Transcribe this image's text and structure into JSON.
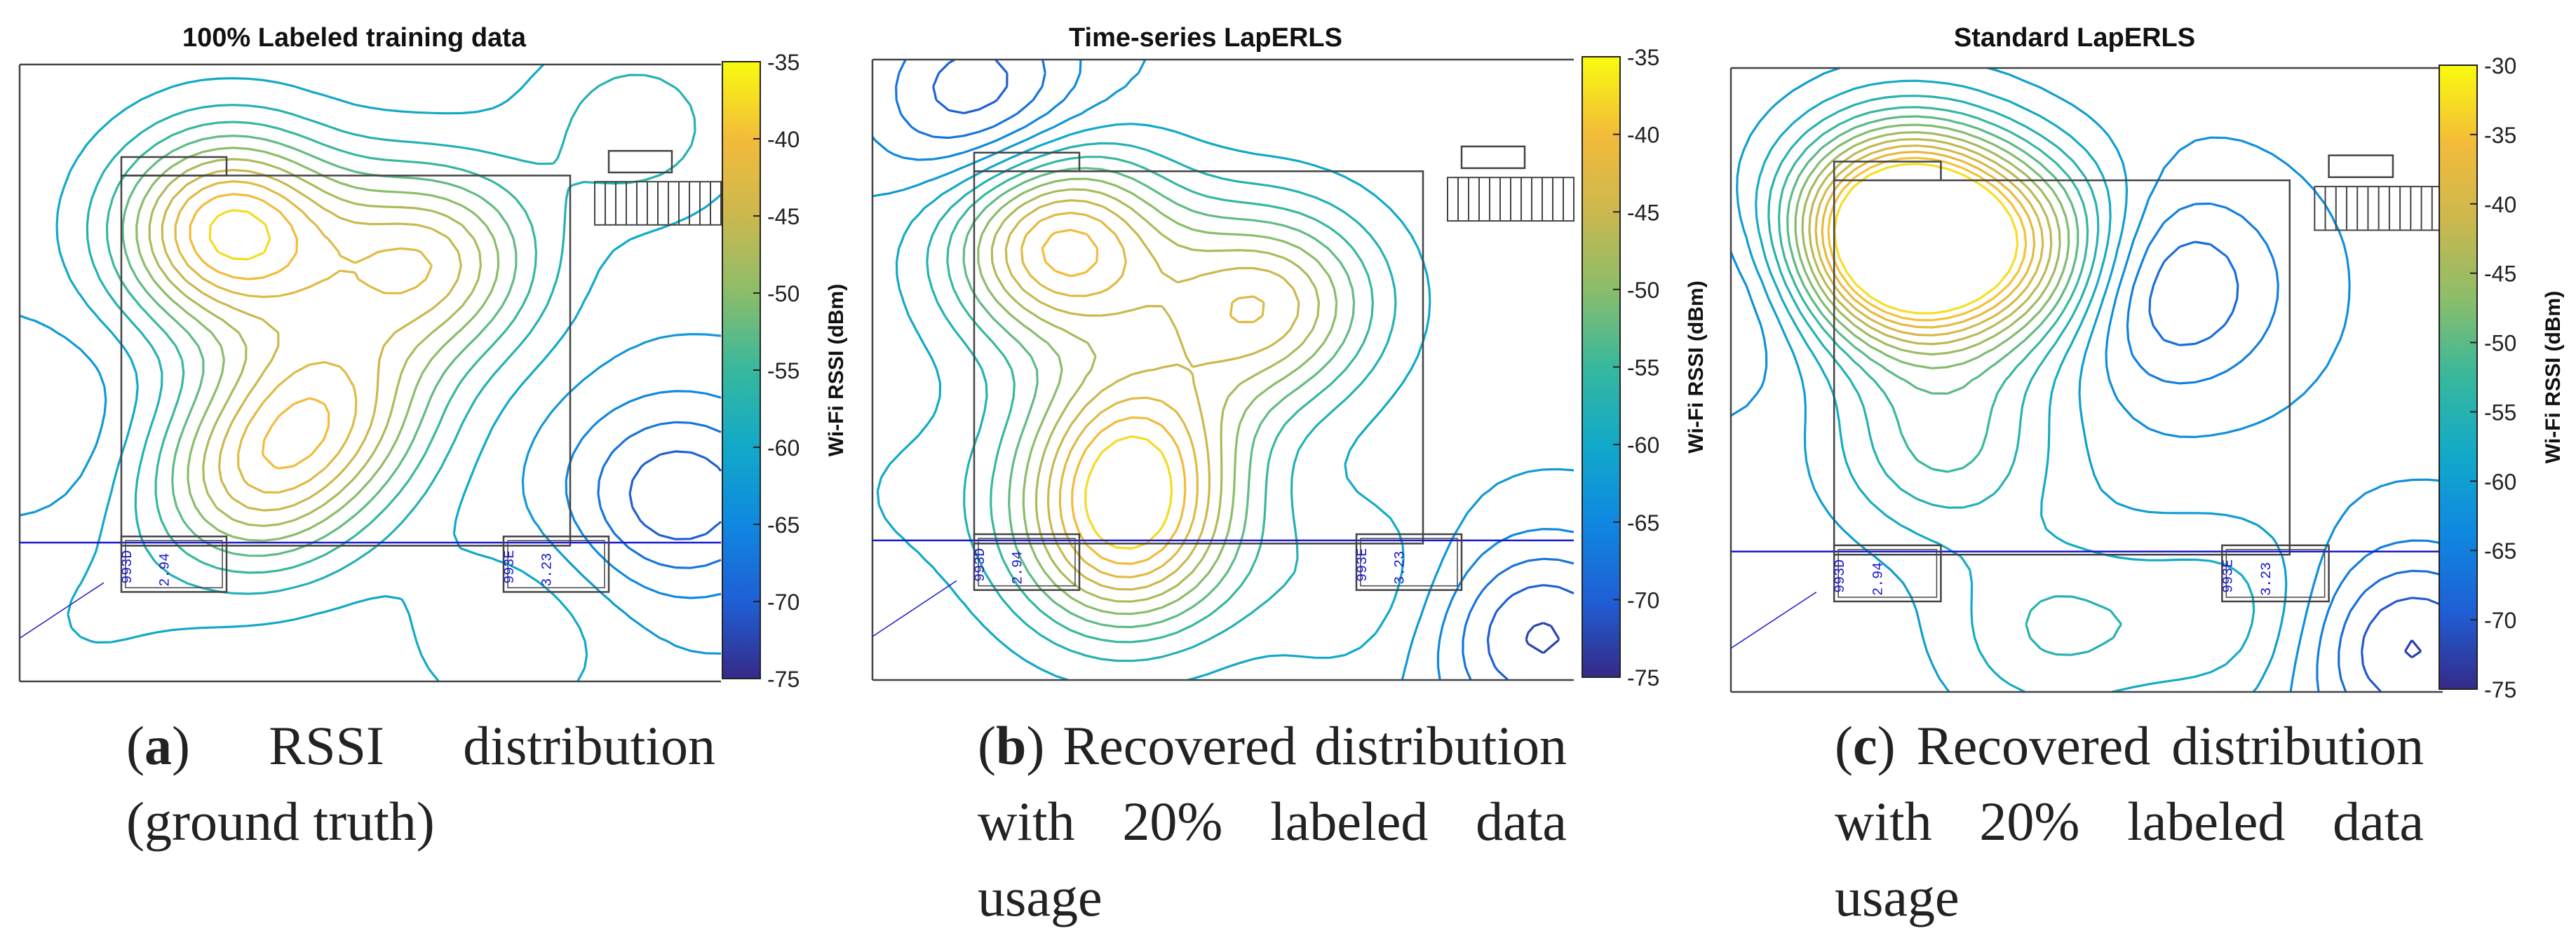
{
  "colors": {
    "parula": [
      "#352a87",
      "#1f5fd6",
      "#0f88e0",
      "#12a9c9",
      "#37b89d",
      "#8bbd6a",
      "#cbb84e",
      "#f3bb3a",
      "#f9fb0e"
    ],
    "plan_lines": "#444444",
    "plan_labels": "#1a1ac8"
  },
  "chart_data": [
    {
      "type": "heatmap",
      "subtype": "contour",
      "title": "100% Labeled training data",
      "colorbar_label": "Wi-Fi RSSI (dBm)",
      "clim": [
        -75,
        -35
      ],
      "colorbar_ticks": [
        "-35",
        "-40",
        "-45",
        "-50",
        "-55",
        "-60",
        "-65",
        "-70",
        "-75"
      ],
      "hotspots": [
        {
          "x": 0.3,
          "y": 0.27,
          "rssi": -37
        },
        {
          "x": 0.58,
          "y": 0.32,
          "rssi": -44
        },
        {
          "x": 0.44,
          "y": 0.55,
          "rssi": -46
        },
        {
          "x": 0.33,
          "y": 0.68,
          "rssi": -47
        },
        {
          "x": 0.05,
          "y": 0.58,
          "rssi": -65
        },
        {
          "x": 0.94,
          "y": 0.7,
          "rssi": -72
        },
        {
          "x": 0.1,
          "y": 0.9,
          "rssi": -60
        },
        {
          "x": 0.7,
          "y": 0.92,
          "rssi": -58
        },
        {
          "x": 0.88,
          "y": 0.1,
          "rssi": -56
        }
      ],
      "caption_letter": "a",
      "caption_text": " RSSI distribution (ground truth)"
    },
    {
      "type": "heatmap",
      "subtype": "contour",
      "title": "Time-series LapERLS",
      "colorbar_label": "Wi-Fi RSSI (dBm)",
      "clim": [
        -75,
        -35
      ],
      "colorbar_ticks": [
        "-35",
        "-40",
        "-45",
        "-50",
        "-55",
        "-60",
        "-65",
        "-70",
        "-75"
      ],
      "hotspots": [
        {
          "x": 0.27,
          "y": 0.3,
          "rssi": -39
        },
        {
          "x": 0.55,
          "y": 0.4,
          "rssi": -45
        },
        {
          "x": 0.37,
          "y": 0.62,
          "rssi": -44
        },
        {
          "x": 0.36,
          "y": 0.78,
          "rssi": -43
        },
        {
          "x": 0.15,
          "y": 0.06,
          "rssi": -72
        },
        {
          "x": 0.62,
          "y": 0.36,
          "rssi": -60
        },
        {
          "x": 0.95,
          "y": 0.93,
          "rssi": -73
        },
        {
          "x": 0.05,
          "y": 0.7,
          "rssi": -60
        },
        {
          "x": 0.7,
          "y": 0.85,
          "rssi": -58
        }
      ],
      "caption_letter": "b",
      "caption_text": " Recovered distribution with 20% labeled data usage"
    },
    {
      "type": "heatmap",
      "subtype": "contour",
      "title": "Standard LapERLS",
      "colorbar_label": "Wi-Fi RSSI (dBm)",
      "clim": [
        -75,
        -30
      ],
      "colorbar_ticks": [
        "-30",
        "-35",
        "-40",
        "-45",
        "-50",
        "-55",
        "-60",
        "-65",
        "-70",
        "-75"
      ],
      "hotspots": [
        {
          "x": 0.25,
          "y": 0.24,
          "rssi": -37
        },
        {
          "x": 0.23,
          "y": 0.3,
          "rssi": -39
        },
        {
          "x": 0.42,
          "y": 0.3,
          "rssi": -46
        },
        {
          "x": 0.6,
          "y": 0.35,
          "rssi": -72
        },
        {
          "x": 0.05,
          "y": 0.35,
          "rssi": -68
        },
        {
          "x": 0.95,
          "y": 0.93,
          "rssi": -73
        },
        {
          "x": 0.45,
          "y": 0.9,
          "rssi": -55
        },
        {
          "x": 0.3,
          "y": 0.6,
          "rssi": -52
        },
        {
          "x": 0.7,
          "y": 0.88,
          "rssi": -56
        }
      ],
      "caption_letter": "c",
      "caption_text": " Recovered distribution with 20% labeled data usage"
    }
  ],
  "floorplan_labels": {
    "left_room": "993D",
    "right_room": "993E",
    "left_num": "2.94",
    "right_num": "3.23"
  }
}
